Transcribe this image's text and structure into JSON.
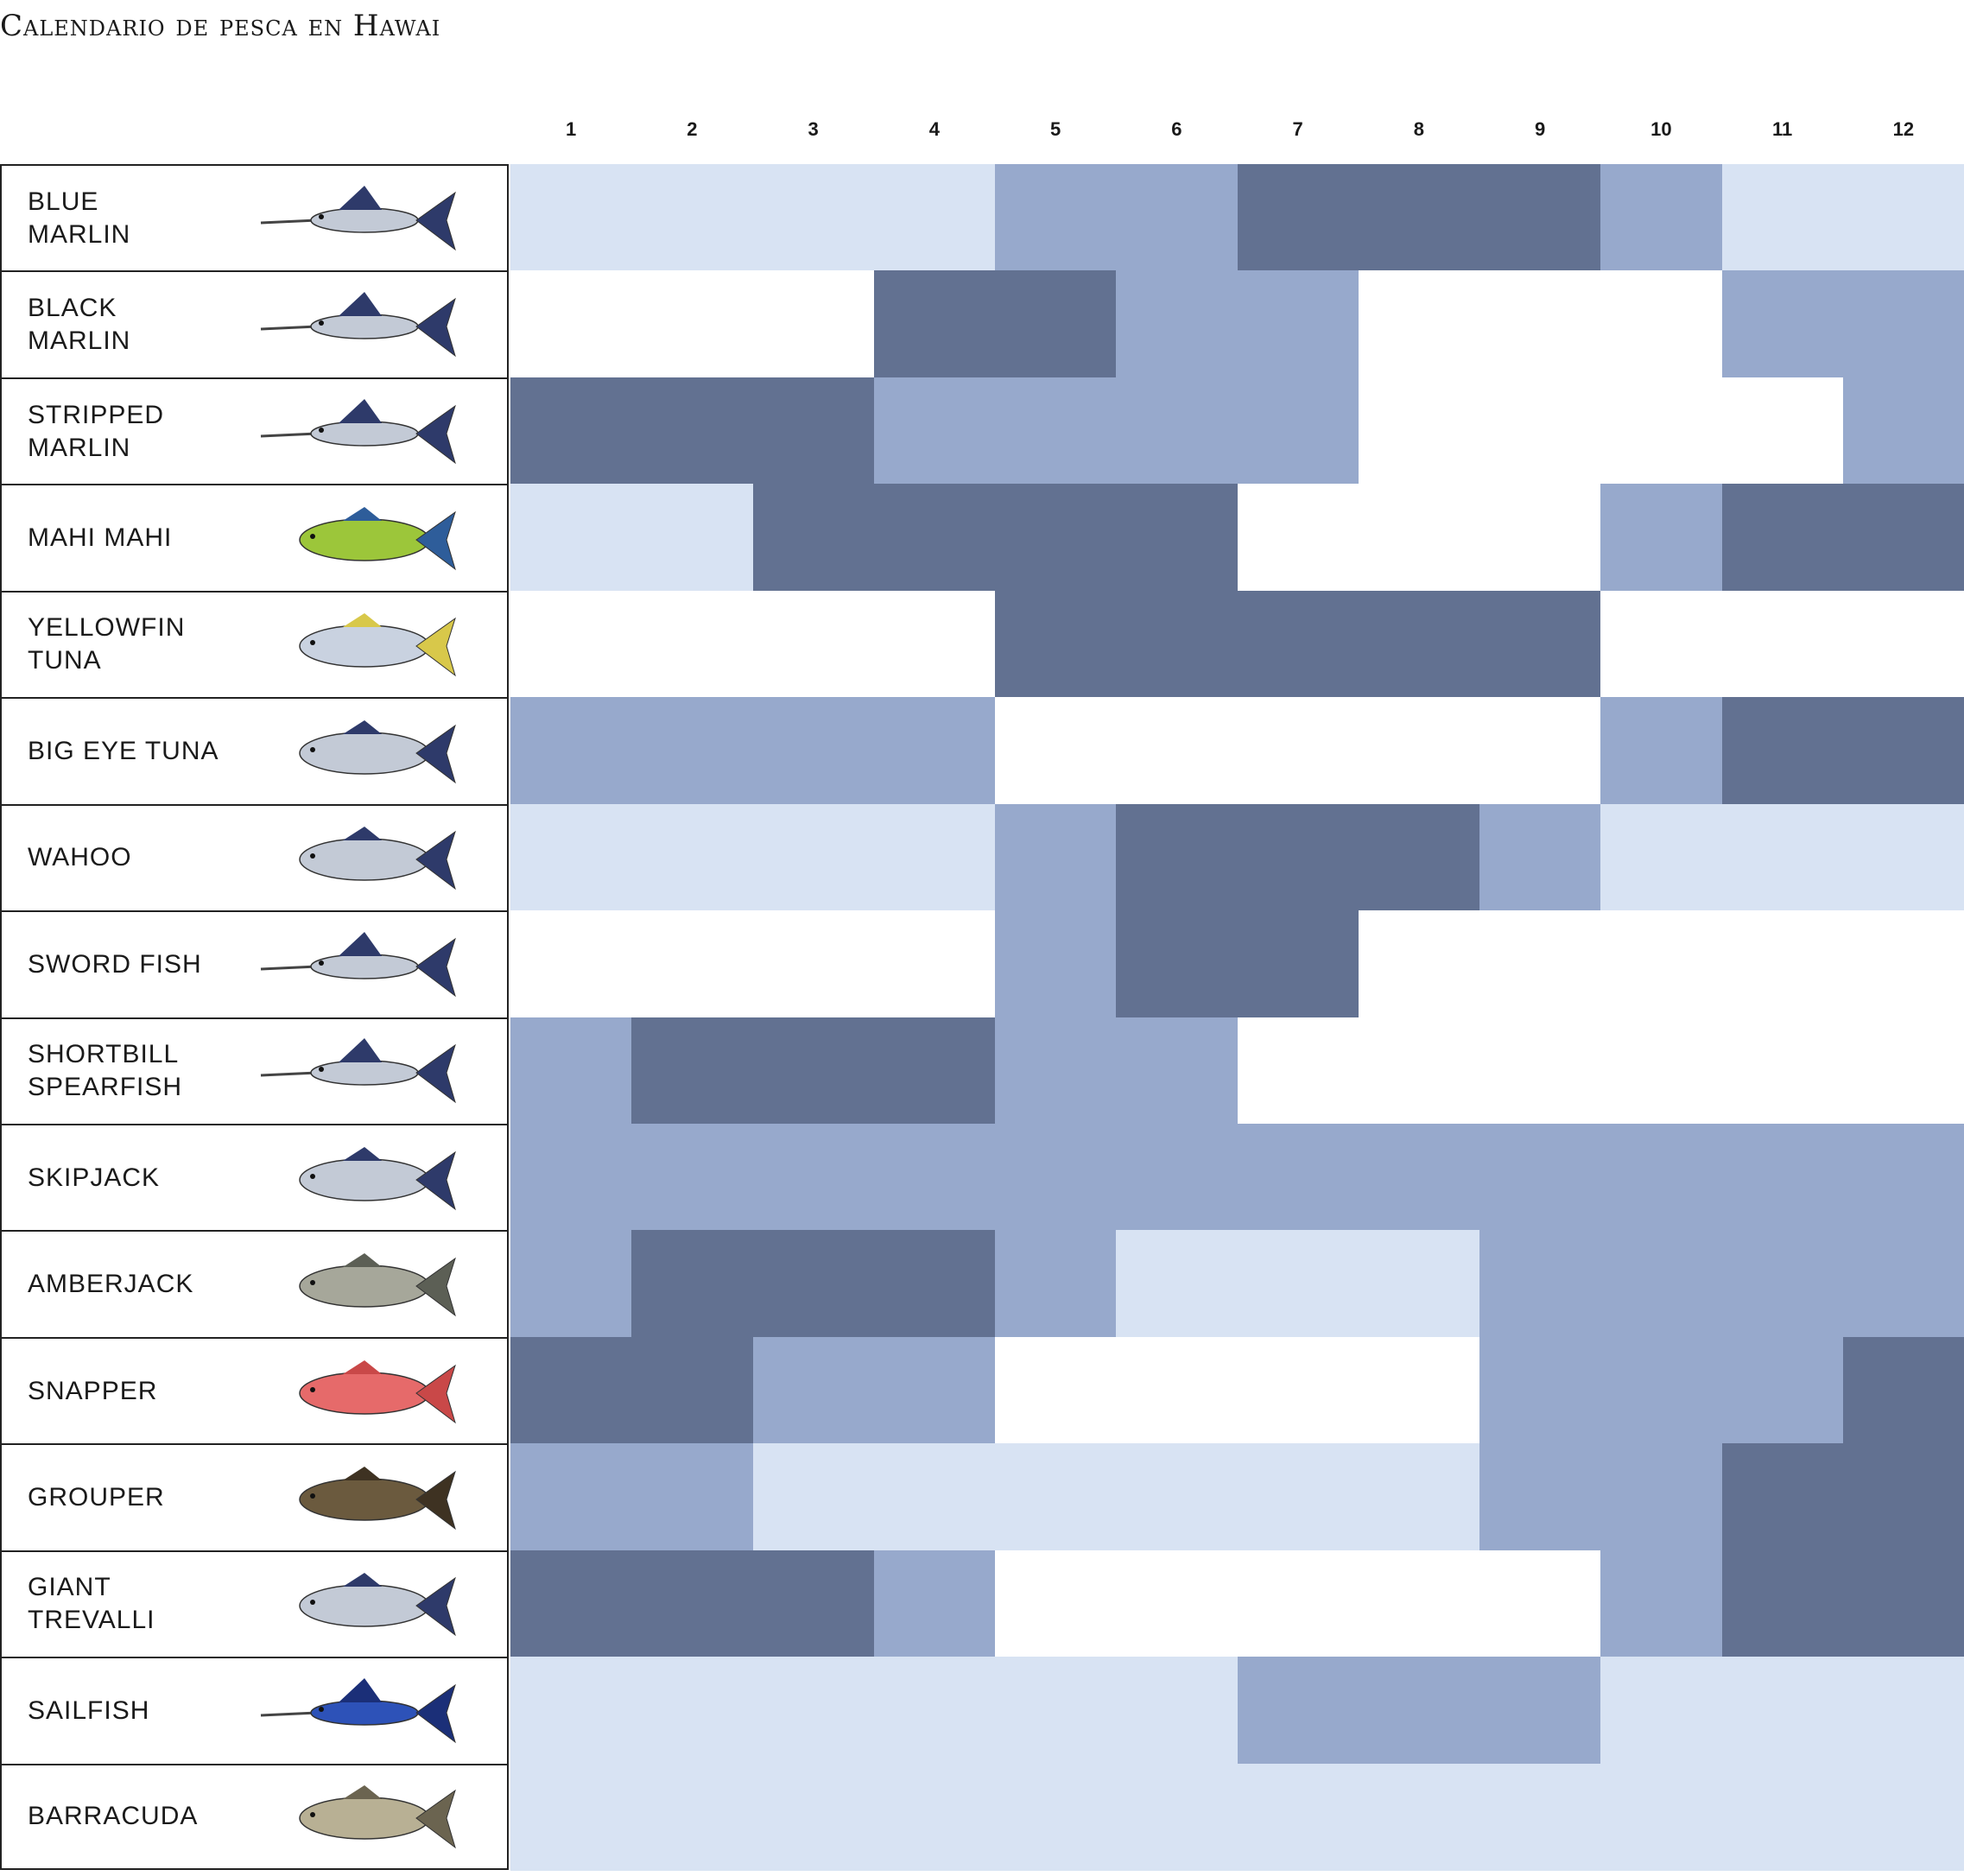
{
  "title": "Calendario de pesca en Hawai",
  "colors": {
    "none": "#ffffff",
    "low": "#d8e3f3",
    "mid": "#97a9cc",
    "high": "#627191"
  },
  "chart_data": {
    "type": "heatmap",
    "title": "Calendario de pesca en Hawai",
    "x": [
      "1",
      "2",
      "3",
      "4",
      "5",
      "6",
      "7",
      "8",
      "9",
      "10",
      "11",
      "12"
    ],
    "legend": "none",
    "levels": [
      "none",
      "low",
      "mid",
      "high"
    ],
    "rows": [
      {
        "name": "BLUE\nMARLIN",
        "icon": "blue-marlin-icon",
        "values": [
          1,
          1,
          1,
          1,
          2,
          2,
          3,
          3,
          3,
          2,
          1,
          1
        ]
      },
      {
        "name": "BLACK\nMARLIN",
        "icon": "black-marlin-icon",
        "values": [
          0,
          0,
          0,
          3,
          3,
          2,
          2,
          0,
          0,
          0,
          2,
          2
        ]
      },
      {
        "name": "STRIPPED\nMARLIN",
        "icon": "striped-marlin-icon",
        "values": [
          3,
          3,
          3,
          2,
          2,
          2,
          2,
          0,
          0,
          0,
          0,
          2
        ]
      },
      {
        "name": "MAHI MAHI",
        "icon": "mahi-mahi-icon",
        "values": [
          1,
          1,
          3,
          3,
          3,
          3,
          0,
          0,
          0,
          2,
          3,
          3
        ]
      },
      {
        "name": "YELLOWFIN\nTUNA",
        "icon": "yellowfin-tuna-icon",
        "values": [
          0,
          0,
          0,
          0,
          3,
          3,
          3,
          3,
          3,
          0,
          0,
          0
        ]
      },
      {
        "name": "BIG EYE TUNA",
        "icon": "bigeye-tuna-icon",
        "values": [
          2,
          2,
          2,
          2,
          0,
          0,
          0,
          0,
          0,
          2,
          3,
          3
        ]
      },
      {
        "name": "WAHOO",
        "icon": "wahoo-icon",
        "values": [
          1,
          1,
          1,
          1,
          2,
          3,
          3,
          3,
          2,
          1,
          1,
          1
        ]
      },
      {
        "name": "SWORD FISH",
        "icon": "swordfish-icon",
        "values": [
          0,
          0,
          0,
          0,
          2,
          3,
          3,
          0,
          0,
          0,
          0,
          0
        ]
      },
      {
        "name": "SHORTBILL\nSPEARFISH",
        "icon": "spearfish-icon",
        "values": [
          2,
          3,
          3,
          3,
          2,
          2,
          0,
          0,
          0,
          0,
          0,
          0
        ]
      },
      {
        "name": "SKIPJACK",
        "icon": "skipjack-icon",
        "values": [
          2,
          2,
          2,
          2,
          2,
          2,
          2,
          2,
          2,
          2,
          2,
          2
        ]
      },
      {
        "name": "AMBERJACK",
        "icon": "amberjack-icon",
        "values": [
          2,
          3,
          3,
          3,
          2,
          1,
          1,
          1,
          2,
          2,
          2,
          2
        ]
      },
      {
        "name": "SNAPPER",
        "icon": "snapper-icon",
        "values": [
          3,
          3,
          2,
          2,
          0,
          0,
          0,
          0,
          2,
          2,
          2,
          3
        ]
      },
      {
        "name": "GROUPER",
        "icon": "grouper-icon",
        "values": [
          2,
          2,
          1,
          1,
          1,
          1,
          1,
          1,
          2,
          2,
          3,
          3
        ]
      },
      {
        "name": "GIANT\nTREVALLI",
        "icon": "giant-trevalli-icon",
        "values": [
          3,
          3,
          3,
          2,
          0,
          0,
          0,
          0,
          0,
          2,
          3,
          3
        ]
      },
      {
        "name": "SAILFISH",
        "icon": "sailfish-icon",
        "values": [
          1,
          1,
          1,
          1,
          1,
          1,
          2,
          2,
          2,
          1,
          1,
          1
        ]
      },
      {
        "name": "BARRACUDA",
        "icon": "barracuda-icon",
        "values": [
          1,
          1,
          1,
          1,
          1,
          1,
          1,
          1,
          1,
          1,
          1,
          1
        ]
      }
    ]
  }
}
